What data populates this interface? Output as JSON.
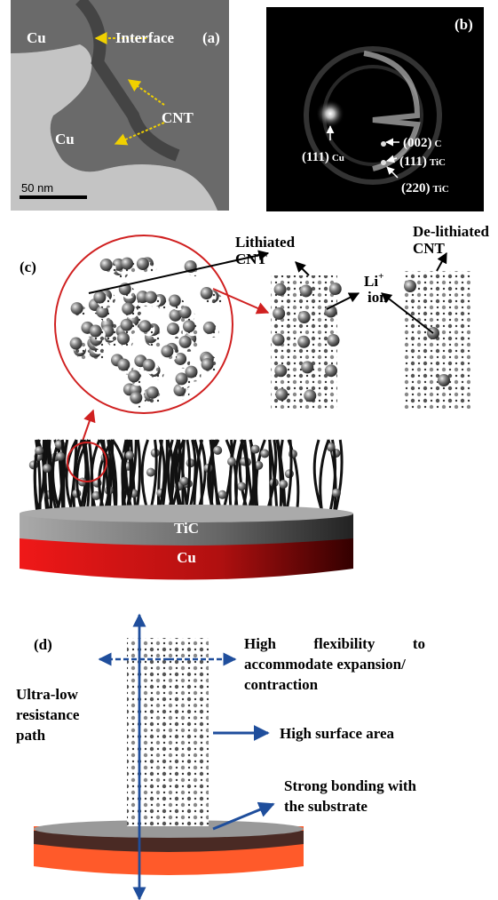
{
  "panel_a": {
    "label": "(a)",
    "cu_top": "Cu",
    "interface": "Interface",
    "cnt": "CNT",
    "cu_bottom": "Cu",
    "scale_bar": "50 nm"
  },
  "panel_b": {
    "label": "(b)",
    "spots": [
      {
        "index": "(111)",
        "phase": "Cu"
      },
      {
        "index": "(002)",
        "phase": "C"
      },
      {
        "index": "(111)",
        "phase": "TiC"
      },
      {
        "index": "(220)",
        "phase": "TiC"
      }
    ]
  },
  "panel_c": {
    "label": "(c)",
    "lithiated": [
      "Lithiated",
      "CNT"
    ],
    "li": "Li",
    "li_charge": "+",
    "ion": "ion",
    "delithiated": [
      "De-lithiated",
      "CNT"
    ],
    "tic": "TiC",
    "cu": "Cu"
  },
  "panel_d": {
    "label": "(d)",
    "flexibility": [
      "High          flexibility          to",
      "accommodate expansion/",
      "contraction"
    ],
    "resistance": [
      "Ultra-low",
      "resistance",
      "path"
    ],
    "surface": "High surface area",
    "bonding": [
      "Strong bonding with",
      "the substrate"
    ]
  }
}
